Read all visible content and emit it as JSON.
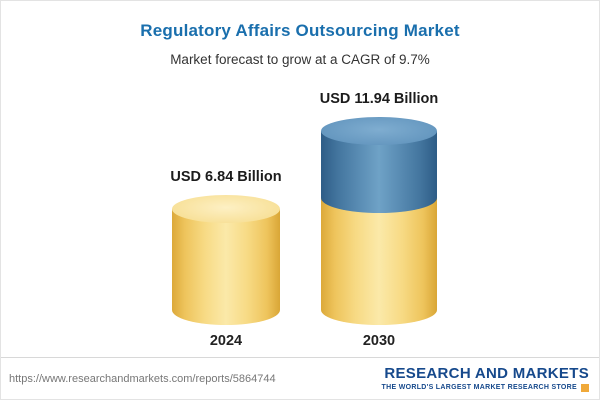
{
  "header": {
    "title": "Regulatory Affairs Outsourcing Market",
    "subtitle": "Market forecast to grow at a CAGR of 9.7%"
  },
  "chart_data": {
    "type": "bar",
    "variant": "cylinder",
    "title": "Regulatory Affairs Outsourcing Market",
    "subtitle": "Market forecast to grow at a CAGR of 9.7%",
    "cagr_percent": 9.7,
    "unit": "USD Billion",
    "categories": [
      "2024",
      "2030"
    ],
    "values": [
      6.84,
      11.94
    ],
    "bars": [
      {
        "category": "2024",
        "value": 6.84,
        "label": "USD 6.84 Billion",
        "segment_colors": [
          "#f3d680"
        ]
      },
      {
        "category": "2030",
        "value": 11.94,
        "label": "USD 11.94 Billion",
        "segment_colors": [
          "#5c8fb6",
          "#f3d680"
        ]
      }
    ],
    "colors": {
      "yellow": "#f3d680",
      "blue": "#5c8fb6",
      "title_blue": "#1a6fad"
    },
    "legend": "none",
    "grid": false
  },
  "footer": {
    "url": "https://www.researchandmarkets.com/reports/5864744",
    "logo_text": "RESEARCH AND MARKETS",
    "logo_tagline": "THE WORLD'S LARGEST MARKET RESEARCH STORE",
    "logo_accent_color": "#f0a93a"
  }
}
